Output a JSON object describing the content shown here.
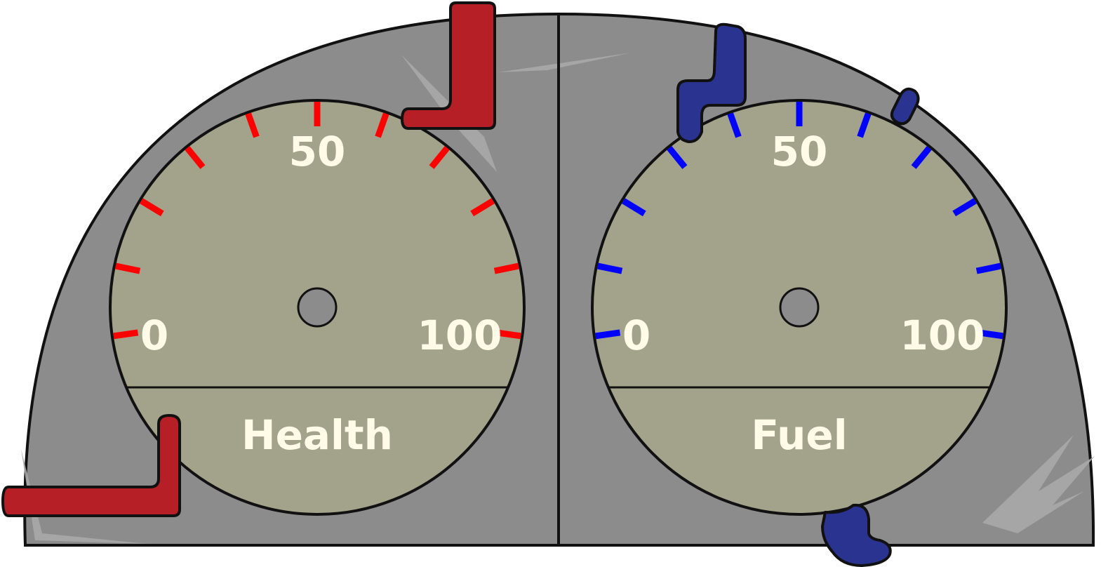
{
  "colors": {
    "panel": "#8c8c8c",
    "face": "#a3a38b",
    "outline": "#111111",
    "label": "#fffbe6",
    "health_accent": "#b71f27",
    "health_ticks": "#ff0000",
    "fuel_accent": "#2a338f",
    "fuel_ticks": "#0000ff",
    "scratch": "#b0b0b0"
  },
  "gauges": {
    "health": {
      "title": "Health",
      "min_label": "0",
      "mid_label": "50",
      "max_label": "100"
    },
    "fuel": {
      "title": "Fuel",
      "min_label": "0",
      "mid_label": "50",
      "max_label": "100"
    }
  }
}
